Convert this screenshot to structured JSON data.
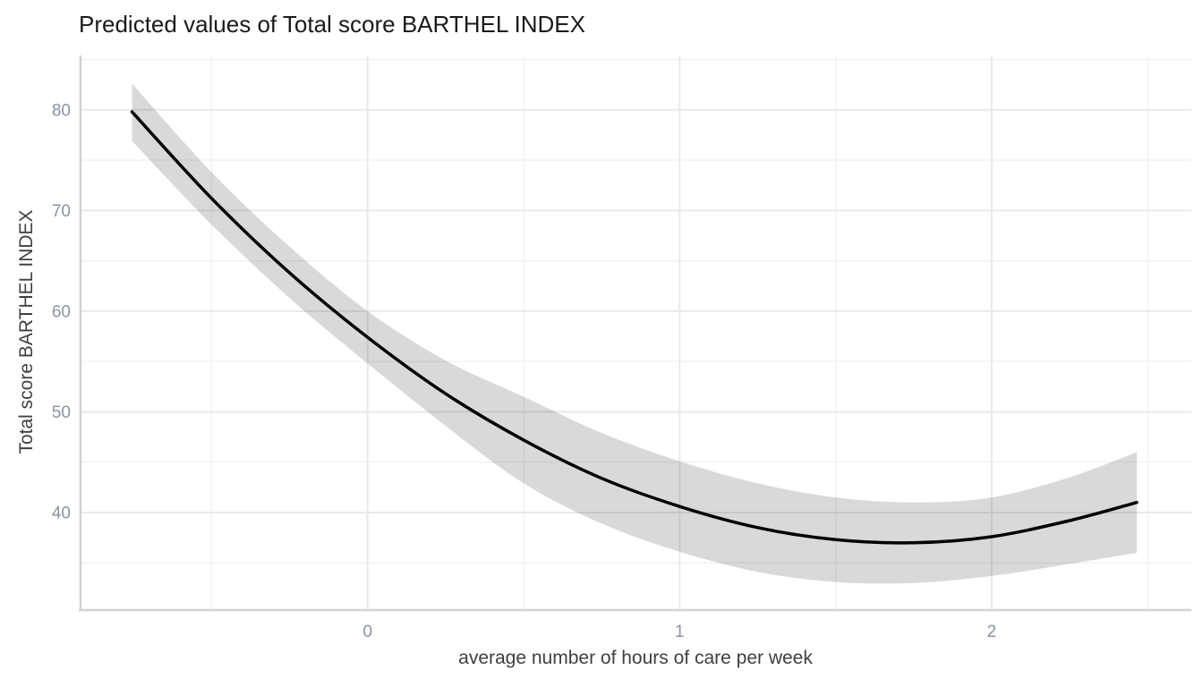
{
  "chart_data": {
    "type": "line",
    "title": "Predicted values of Total score BARTHEL INDEX",
    "xlabel": "average number of hours of care per week",
    "ylabel": "Total score BARTHEL INDEX",
    "x": [
      -0.755,
      -0.5,
      -0.25,
      0,
      0.25,
      0.5,
      0.75,
      1,
      1.25,
      1.5,
      1.75,
      2,
      2.25,
      2.465
    ],
    "series": [
      {
        "name": "predicted",
        "values": [
          79.8,
          71.2,
          63.8,
          57.4,
          51.8,
          47.2,
          43.4,
          40.6,
          38.5,
          37.3,
          37.0,
          37.6,
          39.2,
          41.0
        ]
      },
      {
        "name": "conf_low",
        "values": [
          76.9,
          68.6,
          61.3,
          54.8,
          48.6,
          42.9,
          38.9,
          36.1,
          34.1,
          33.1,
          33.0,
          33.7,
          34.9,
          36.0
        ]
      },
      {
        "name": "conf_high",
        "values": [
          82.6,
          73.8,
          66.4,
          60.0,
          55.1,
          51.5,
          47.9,
          45.1,
          42.9,
          41.5,
          41.0,
          41.5,
          43.5,
          46.0
        ]
      }
    ],
    "x_ticks": [
      0,
      1,
      2
    ],
    "x_minor_ticks": [
      -0.5,
      0.5,
      1.5,
      2.5
    ],
    "y_ticks": [
      40,
      50,
      60,
      70,
      80
    ],
    "y_minor_ticks": [
      35,
      45,
      55,
      65,
      75,
      85
    ],
    "xlim": [
      -0.92,
      2.64
    ],
    "ylim": [
      30.4,
      85.4
    ],
    "grid": true,
    "legend": false,
    "colors": {
      "background": "#ffffff",
      "line": "#000000",
      "ribbon_fill": "#000000",
      "ribbon_opacity": 0.15,
      "grid_major": "#e9e9e9",
      "grid_minor": "#f2f2f2",
      "axis_line": "#d2d2d2",
      "tick_label": "#8a93a3",
      "axis_title": "#3f3f3f",
      "title": "#1a1a1a"
    }
  }
}
